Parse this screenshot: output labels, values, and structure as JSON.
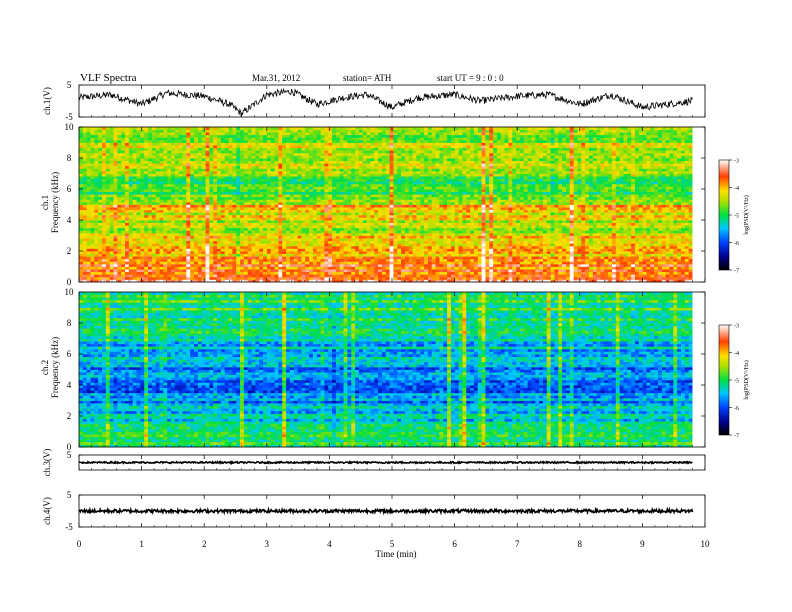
{
  "header": {
    "title": "VLF  Spectra",
    "date": "Mar.31, 2012",
    "station": "station= ATH",
    "start": "start  UT  =    9  : 0  : 0"
  },
  "chart_data": [
    {
      "type": "line",
      "panel": "ch1-waveform",
      "ylabel": "ch.1(V)",
      "ylim": [
        -5,
        5
      ],
      "yticks": [
        "5",
        "-5"
      ],
      "x_range": [
        0,
        9.8
      ],
      "approx_trend": [
        [
          0,
          1
        ],
        [
          0.5,
          2
        ],
        [
          1,
          -1
        ],
        [
          1.4,
          2.5
        ],
        [
          2,
          1.5
        ],
        [
          2.4,
          -1
        ],
        [
          2.6,
          -4
        ],
        [
          3,
          2
        ],
        [
          3.4,
          3
        ],
        [
          3.8,
          -1
        ],
        [
          4.2,
          1
        ],
        [
          4.6,
          2
        ],
        [
          5,
          -2
        ],
        [
          5.4,
          1
        ],
        [
          6,
          2
        ],
        [
          6.4,
          0
        ],
        [
          7,
          1.5
        ],
        [
          7.5,
          2
        ],
        [
          8,
          -1
        ],
        [
          8.5,
          2
        ],
        [
          9,
          -2
        ],
        [
          9.8,
          0
        ]
      ]
    },
    {
      "type": "heatmap",
      "panel": "ch1-spectrogram",
      "ylabel": "ch.1",
      "ylabel2": "Frequency  (kHz)",
      "ylim": [
        0,
        10
      ],
      "yticks": [
        "0",
        "2",
        "4",
        "6",
        "8",
        "10"
      ],
      "colorbar": {
        "label": "log(PSD(V²/Hz)",
        "range": [
          -7,
          -3
        ],
        "ticks": [
          "-3",
          "-4",
          "-5",
          "-6",
          "-7"
        ]
      },
      "dominant_level_by_frequency_khz": [
        [
          0.5,
          -3.5
        ],
        [
          1.5,
          -4.0
        ],
        [
          2.5,
          -4.0
        ],
        [
          3.5,
          -4.5
        ],
        [
          4.8,
          -4.0
        ],
        [
          6.0,
          -5.0
        ],
        [
          7.5,
          -4.5
        ],
        [
          9.0,
          -4.5
        ]
      ]
    },
    {
      "type": "heatmap",
      "panel": "ch2-spectrogram",
      "ylabel": "ch.2",
      "ylabel2": "Frequency  (kHz)",
      "ylim": [
        0,
        10
      ],
      "yticks": [
        "0",
        "2",
        "4",
        "6",
        "8",
        "10"
      ],
      "colorbar": {
        "label": "log(PSD(V²/Hz)",
        "range": [
          -7,
          -3
        ],
        "ticks": [
          "-3",
          "-4",
          "-5",
          "-6",
          "-7"
        ]
      },
      "dominant_level_by_frequency_khz": [
        [
          0.5,
          -5.0
        ],
        [
          1.5,
          -5.3
        ],
        [
          2.5,
          -5.5
        ],
        [
          3.5,
          -5.8
        ],
        [
          4.5,
          -5.8
        ],
        [
          6.0,
          -5.5
        ],
        [
          7.5,
          -5.3
        ],
        [
          9.0,
          -5.0
        ]
      ]
    },
    {
      "type": "line",
      "panel": "ch3-waveform",
      "ylabel": "ch.3(V)",
      "ylim": [
        -5,
        5
      ],
      "yticks": [
        "5"
      ],
      "x_range": [
        0,
        9.8
      ],
      "approx_level": 0
    },
    {
      "type": "line",
      "panel": "ch4-waveform",
      "ylabel": "ch.4(V)",
      "ylim": [
        -5,
        5
      ],
      "yticks": [
        "5",
        "-5"
      ],
      "x_range": [
        0,
        9.8
      ],
      "approx_level": 0
    }
  ],
  "x_axis": {
    "label": "Time  (min)",
    "range": [
      0,
      10
    ],
    "ticks": [
      "0",
      "1",
      "2",
      "3",
      "4",
      "5",
      "6",
      "7",
      "8",
      "9",
      "10"
    ]
  }
}
